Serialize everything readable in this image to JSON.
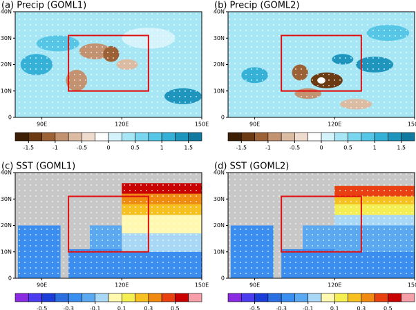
{
  "chart_data": [
    {
      "type": "map",
      "title": "(a) Precip (GOML1)",
      "xlim": [
        80,
        150
      ],
      "ylim": [
        0,
        40
      ],
      "xticks": [
        {
          "value": 90,
          "label": "90E"
        },
        {
          "value": 120,
          "label": "120E"
        },
        {
          "value": 150,
          "label": "150E"
        }
      ],
      "yticks": [
        0,
        {
          "value": 10,
          "label": "10N"
        },
        {
          "value": 20,
          "label": "20N"
        },
        {
          "value": 30,
          "label": "30N"
        },
        {
          "value": 40,
          "label": "40N"
        }
      ],
      "box": {
        "lon": [
          100,
          130
        ],
        "lat": [
          10,
          31
        ],
        "color": "#e01010"
      },
      "colorbar": {
        "lim": [
          -1.75,
          1.75
        ],
        "ticks": [
          -1.5,
          -1,
          -0.5,
          0,
          0.5,
          1,
          1.5
        ],
        "colors": [
          "#3d1f05",
          "#6b3a12",
          "#9c6236",
          "#c39270",
          "#dcbba3",
          "#f0dccf",
          "#ffffff",
          "#d5f3fa",
          "#a6e6f5",
          "#7ad6ee",
          "#55c6e6",
          "#35b0d6",
          "#1e95bd",
          "#127aa0"
        ]
      }
    },
    {
      "type": "map",
      "title": "(b) Precip (GOML2)",
      "xlim": [
        80,
        150
      ],
      "ylim": [
        0,
        40
      ],
      "xticks": [
        {
          "value": 90,
          "label": "90E"
        },
        {
          "value": 120,
          "label": "120E"
        },
        {
          "value": 150,
          "label": "150E"
        }
      ],
      "yticks": [
        0,
        {
          "value": 10,
          "label": "10N"
        },
        {
          "value": 20,
          "label": "20N"
        },
        {
          "value": 30,
          "label": "30N"
        },
        {
          "value": 40,
          "label": "40N"
        }
      ],
      "box": {
        "lon": [
          100,
          130
        ],
        "lat": [
          10,
          31
        ],
        "color": "#e01010"
      },
      "colorbar": {
        "lim": [
          -1.75,
          1.75
        ],
        "ticks": [
          -1.5,
          -1,
          -0.5,
          0,
          0.5,
          1,
          1.5
        ],
        "colors": [
          "#3d1f05",
          "#6b3a12",
          "#9c6236",
          "#c39270",
          "#dcbba3",
          "#f0dccf",
          "#ffffff",
          "#d5f3fa",
          "#a6e6f5",
          "#7ad6ee",
          "#55c6e6",
          "#35b0d6",
          "#1e95bd",
          "#127aa0"
        ]
      }
    },
    {
      "type": "map",
      "title": "(c) SST (GOML1)",
      "xlim": [
        80,
        150
      ],
      "ylim": [
        0,
        40
      ],
      "xticks": [
        {
          "value": 90,
          "label": "90E"
        },
        {
          "value": 120,
          "label": "120E"
        },
        {
          "value": 150,
          "label": "150E"
        }
      ],
      "yticks": [
        0,
        {
          "value": 10,
          "label": "10N"
        },
        {
          "value": 20,
          "label": "20N"
        },
        {
          "value": 30,
          "label": "30N"
        },
        {
          "value": 40,
          "label": "40N"
        }
      ],
      "box": {
        "lon": [
          100,
          130
        ],
        "lat": [
          10,
          31
        ],
        "color": "#e01010"
      },
      "colorbar": {
        "lim": [
          -0.7,
          0.7
        ],
        "ticks": [
          -0.5,
          -0.3,
          -0.1,
          0.1,
          0.3,
          0.5
        ],
        "colors": [
          "#8a2be2",
          "#4b3cf0",
          "#1a3cd8",
          "#2a6ee0",
          "#3a8ef0",
          "#5aa8f0",
          "#a8d8f5",
          "#fff8b0",
          "#f5ee50",
          "#f5c020",
          "#f08a10",
          "#e84010",
          "#c80000",
          "#f5a0a8"
        ]
      }
    },
    {
      "type": "map",
      "title": "(d) SST (GOML2)",
      "xlim": [
        80,
        150
      ],
      "ylim": [
        0,
        40
      ],
      "xticks": [
        {
          "value": 90,
          "label": "90E"
        },
        {
          "value": 120,
          "label": "120E"
        },
        {
          "value": 150,
          "label": "150E"
        }
      ],
      "yticks": [
        0,
        {
          "value": 10,
          "label": "10N"
        },
        {
          "value": 20,
          "label": "20N"
        },
        {
          "value": 30,
          "label": "30N"
        },
        {
          "value": 40,
          "label": "40N"
        }
      ],
      "box": {
        "lon": [
          100,
          130
        ],
        "lat": [
          10,
          31
        ],
        "color": "#e01010"
      },
      "colorbar": {
        "lim": [
          -0.7,
          0.7
        ],
        "ticks": [
          -0.5,
          -0.3,
          -0.1,
          0.1,
          0.3,
          0.5
        ],
        "colors": [
          "#8a2be2",
          "#4b3cf0",
          "#1a3cd8",
          "#2a6ee0",
          "#3a8ef0",
          "#5aa8f0",
          "#a8d8f5",
          "#fff8b0",
          "#f5ee50",
          "#f5c020",
          "#f08a10",
          "#e84010",
          "#c80000",
          "#f5a0a8"
        ]
      }
    }
  ]
}
